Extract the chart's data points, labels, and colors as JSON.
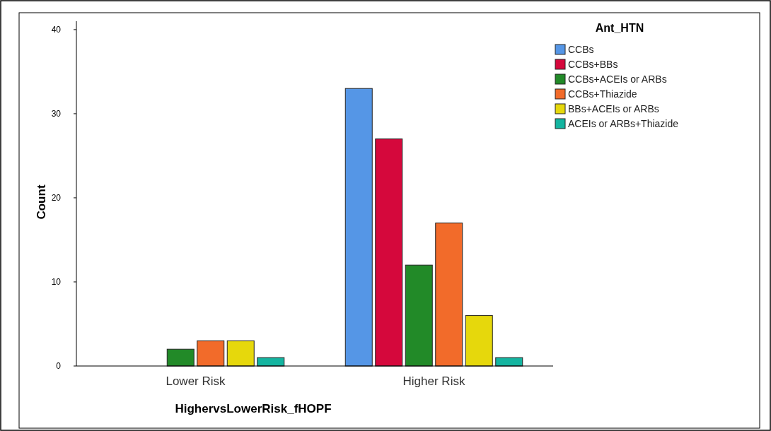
{
  "chart_data": {
    "type": "bar",
    "xlabel": "HighervsLowerRisk_fHOPF",
    "ylabel": "Count",
    "legend_title": "Ant_HTN",
    "categories": [
      "Lower Risk",
      "Higher Risk"
    ],
    "series": [
      {
        "name": "CCBs",
        "color": "#5596e6",
        "values": [
          0,
          33
        ]
      },
      {
        "name": "CCBs+BBs",
        "color": "#d5083c",
        "values": [
          0,
          27
        ]
      },
      {
        "name": "CCBs+ACEIs or ARBs",
        "color": "#228a28",
        "values": [
          2,
          12
        ]
      },
      {
        "name": "CCBs+Thiazide",
        "color": "#f26b2a",
        "values": [
          3,
          17
        ]
      },
      {
        "name": "BBs+ACEIs or ARBs",
        "color": "#e6d80c",
        "values": [
          3,
          6
        ]
      },
      {
        "name": "ACEIs or ARBs+Thiazide",
        "color": "#14b4a0",
        "values": [
          1,
          1
        ]
      }
    ],
    "ylim": [
      0,
      41
    ],
    "yticks": [
      0,
      10,
      20,
      30,
      40
    ],
    "grid": false,
    "legend": "top right"
  }
}
